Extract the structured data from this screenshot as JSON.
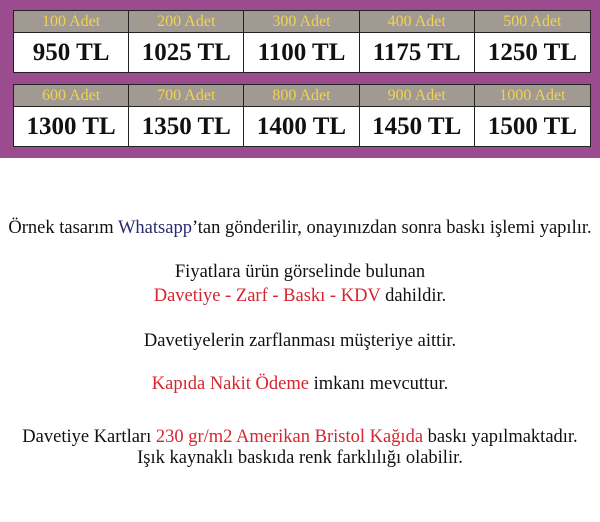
{
  "price_rows": [
    [
      {
        "qty": "100 Adet",
        "price": "950 TL"
      },
      {
        "qty": "200 Adet",
        "price": "1025 TL"
      },
      {
        "qty": "300 Adet",
        "price": "1100 TL"
      },
      {
        "qty": "400 Adet",
        "price": "1175 TL"
      },
      {
        "qty": "500 Adet",
        "price": "1250 TL"
      }
    ],
    [
      {
        "qty": "600 Adet",
        "price": "1300 TL"
      },
      {
        "qty": "700 Adet",
        "price": "1350 TL"
      },
      {
        "qty": "800 Adet",
        "price": "1400 TL"
      },
      {
        "qty": "900 Adet",
        "price": "1450 TL"
      },
      {
        "qty": "1000 Adet",
        "price": "1500 TL"
      }
    ]
  ],
  "info": {
    "l1a": "Örnek tasarım ",
    "l1b": "Whatsapp",
    "l1c": "’tan gönderilir, onayınızdan sonra baskı işlemi yapılır.",
    "l2": "Fiyatlara ürün görselinde bulunan",
    "l3a": "Davetiye - Zarf - Baskı - KDV",
    "l3b": " dahildir.",
    "l4": "Davetiyelerin zarflanması müşteriye aittir.",
    "l5a": "Kapıda Nakit Ödeme",
    "l5b": " imkanı mevcuttur.",
    "l6a": "Davetiye Kartları ",
    "l6b": "230 gr/m2 Amerikan Bristol Kağıda",
    "l6c": " baskı yapılmaktadır.",
    "l7": "Işık kaynaklı baskıda renk farklılığı olabilir."
  },
  "colors": {
    "band": "#9a4c8e",
    "header_bg": "#a19a92",
    "header_text": "#f2d44c",
    "highlight": "#d5262f",
    "whatsapp": "#2a2a6e"
  }
}
